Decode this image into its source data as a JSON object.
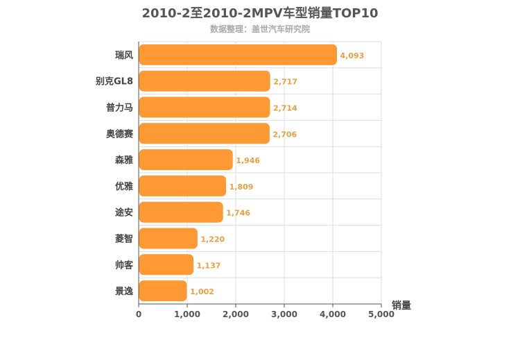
{
  "chart_data": {
    "type": "bar",
    "orientation": "horizontal",
    "title": "2010-2至2010-2MPV车型销量TOP10",
    "subtitle": "数据整理：盖世汽车研究院",
    "categories": [
      "瑞风",
      "别克GL8",
      "普力马",
      "奥德赛",
      "森雅",
      "优雅",
      "途安",
      "菱智",
      "帅客",
      "景逸"
    ],
    "values": [
      4093,
      2717,
      2714,
      2706,
      1946,
      1809,
      1746,
      1220,
      1137,
      1002
    ],
    "value_labels": [
      "4,093",
      "2,717",
      "2,714",
      "2,706",
      "1,946",
      "1,809",
      "1,746",
      "1,220",
      "1,137",
      "1,002"
    ],
    "xlabel": "销量",
    "xlim": [
      0,
      5000
    ],
    "xticks": [
      0,
      1000,
      2000,
      3000,
      4000,
      5000
    ],
    "xtick_labels": [
      "0",
      "1,000",
      "2,000",
      "3,000",
      "4,000",
      "5,000"
    ],
    "grid": true,
    "bar_color": "#ff9933",
    "label_color": "#e8a040"
  }
}
